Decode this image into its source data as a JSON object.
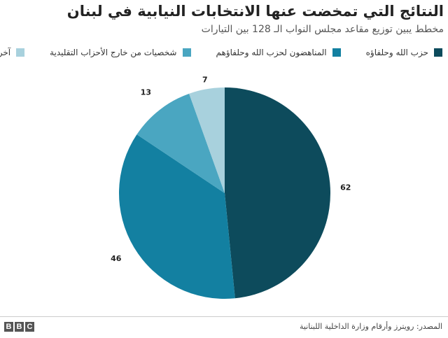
{
  "header": {
    "title": "النتائج التي تمخضت عنها الانتخابات النيابية في لبنان",
    "subtitle": "مخطط يبين توزيع مقاعد مجلس النواب الـ 128 بين التيارات"
  },
  "legend": [
    {
      "label": "حزب الله وحلفاؤه",
      "color": "#0d4b5c"
    },
    {
      "label": "المناهضون لحزب الله وحلفاؤهم",
      "color": "#1380a1"
    },
    {
      "label": "شخصيات من خارج الأحزاب التقليدية",
      "color": "#4aa6c1"
    },
    {
      "label": "آخرون",
      "color": "#a8d1dd"
    }
  ],
  "chart_data": {
    "type": "pie",
    "title": "النتائج التي تمخضت عنها الانتخابات النيابية في لبنان",
    "subtitle": "مخطط يبين توزيع مقاعد مجلس النواب الـ 128 بين التيارات",
    "categories": [
      "حزب الله وحلفاؤه",
      "المناهضون لحزب الله وحلفاؤهم",
      "شخصيات من خارج الأحزاب التقليدية",
      "آخرون"
    ],
    "values": [
      62,
      46,
      13,
      7
    ],
    "value_labels": [
      "62",
      "46",
      "13",
      "7"
    ],
    "colors": [
      "#0d4b5c",
      "#1380a1",
      "#4aa6c1",
      "#a8d1dd"
    ],
    "legend_position": "top",
    "start_angle": "top",
    "direction": "clockwise"
  },
  "footer": {
    "source": "المصدر: رويترز وأرقام وزارة الداخلية اللبنانية",
    "logo": [
      "B",
      "B",
      "C"
    ]
  }
}
